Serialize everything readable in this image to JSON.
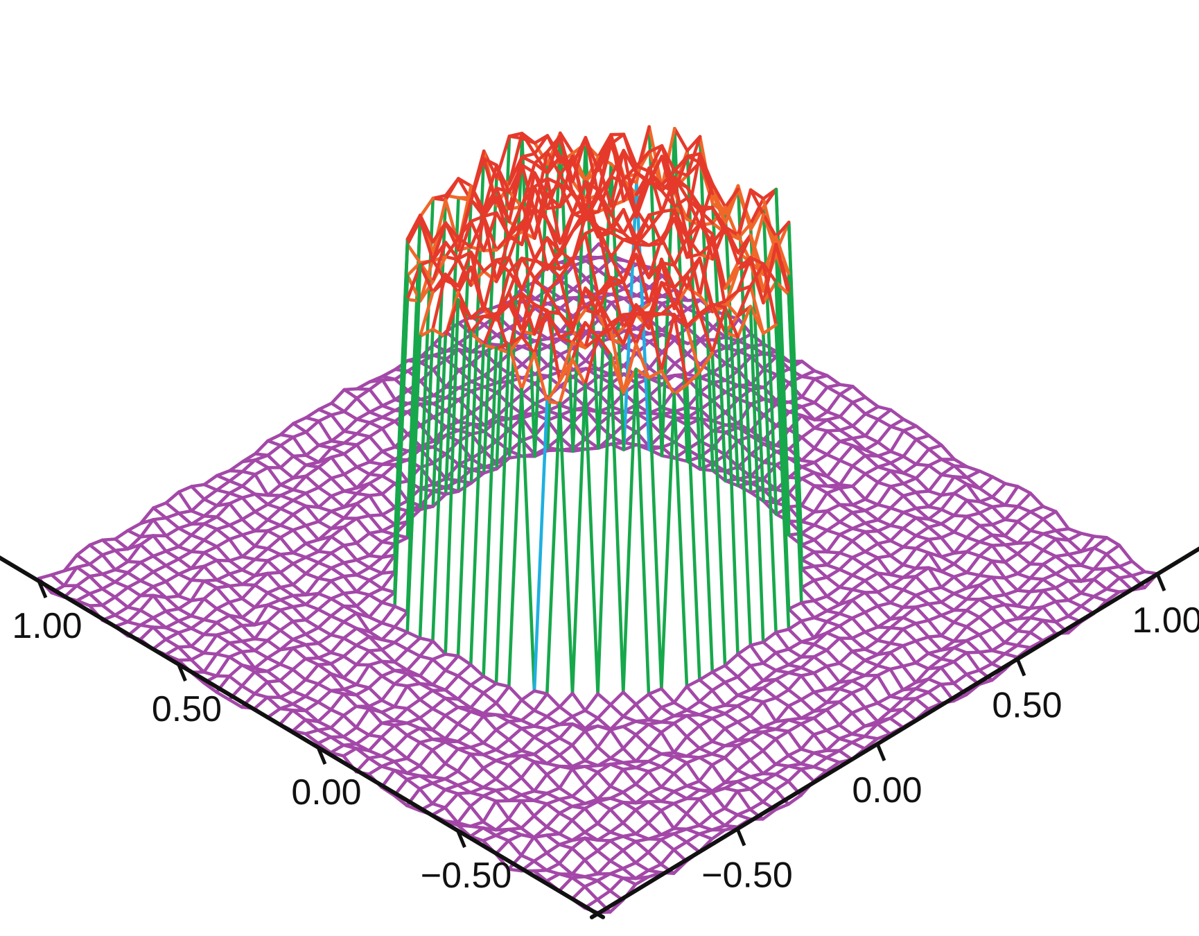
{
  "chart_data": {
    "type": "surface",
    "xlim": [
      -1.0,
      1.0
    ],
    "ylim": [
      -1.0,
      1.0
    ],
    "zlim": [
      0.0,
      1.0
    ],
    "x_axis": {
      "ticks": [
        1.0,
        0.5,
        0.0,
        -0.5
      ],
      "tick_labels": [
        "1.00",
        "0.50",
        "0.00",
        "−0.50"
      ]
    },
    "y_axis": {
      "ticks": [
        -0.5,
        0.0,
        0.5,
        1.0
      ],
      "tick_labels": [
        "−0.50",
        "0.00",
        "0.50",
        "1.00"
      ]
    },
    "surface": {
      "shape": "noisy cylinder",
      "plateau_height": 0.92,
      "plateau_radius": 0.5,
      "base_height": 0.0,
      "noise_amplitude": 0.04
    },
    "colormap": [
      "#a348a8",
      "#5b3fa5",
      "#2a5ab8",
      "#1fb0e0",
      "#17a84b",
      "#8cc63f",
      "#f2e21a",
      "#f6a01a",
      "#f0672a",
      "#e53a2b"
    ],
    "grid": true,
    "legend": "none"
  }
}
